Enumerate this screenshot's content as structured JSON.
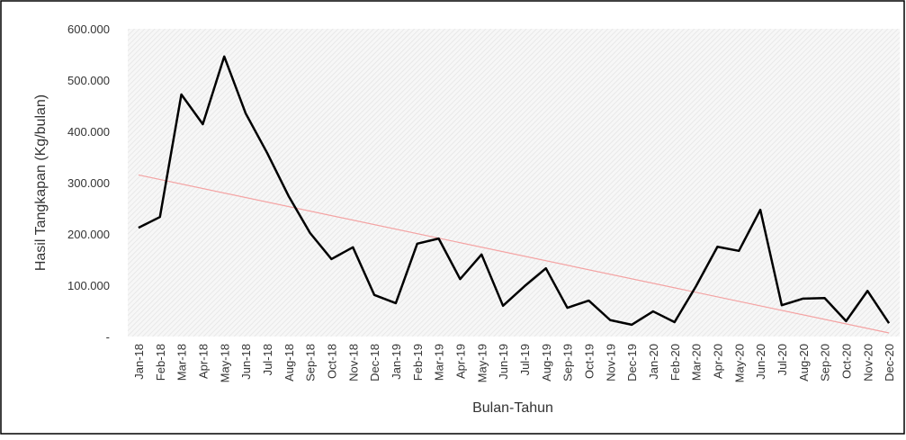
{
  "chart_data": {
    "type": "line",
    "x_label": "Bulan-Tahun",
    "y_label": "Hasil Tangkapan (Kg/bulan)",
    "categories": [
      "Jan-18",
      "Feb-18",
      "Mar-18",
      "Apr-18",
      "May-18",
      "Jun-18",
      "Jul-18",
      "Aug-18",
      "Sep-18",
      "Oct-18",
      "Nov-18",
      "Dec-18",
      "Jan-19",
      "Feb-19",
      "Mar-19",
      "Apr-19",
      "May-19",
      "Jun-19",
      "Jul-19",
      "Aug-19",
      "Sep-19",
      "Oct-19",
      "Nov-19",
      "Dec-19",
      "Jan-20",
      "Feb-20",
      "Mar-20",
      "Apr-20",
      "May-20",
      "Jun-20",
      "Jul-20",
      "Aug-20",
      "Sep-20",
      "Oct-20",
      "Nov-20",
      "Dec-20"
    ],
    "values": [
      212000,
      233000,
      472000,
      414000,
      546000,
      435000,
      358000,
      274000,
      202000,
      151000,
      174000,
      81000,
      65000,
      181000,
      191000,
      112000,
      160000,
      60000,
      98000,
      133000,
      56000,
      70000,
      32000,
      23000,
      49000,
      28000,
      98000,
      175000,
      167000,
      247000,
      61000,
      74000,
      75000,
      30000,
      89000,
      26000
    ],
    "color": "#000000",
    "trendline": {
      "color": "#f4a3a3",
      "values": [
        315000,
        7000
      ]
    },
    "ylim": [
      0,
      600000
    ],
    "yticks": [
      {
        "value": 0,
        "label": "-"
      },
      {
        "value": 100000,
        "label": "100.000"
      },
      {
        "value": 200000,
        "label": "200.000"
      },
      {
        "value": 300000,
        "label": "300.000"
      },
      {
        "value": 400000,
        "label": "400.000"
      },
      {
        "value": 500000,
        "label": "500.000"
      },
      {
        "value": 600000,
        "label": "600.000"
      }
    ],
    "grid": false
  }
}
